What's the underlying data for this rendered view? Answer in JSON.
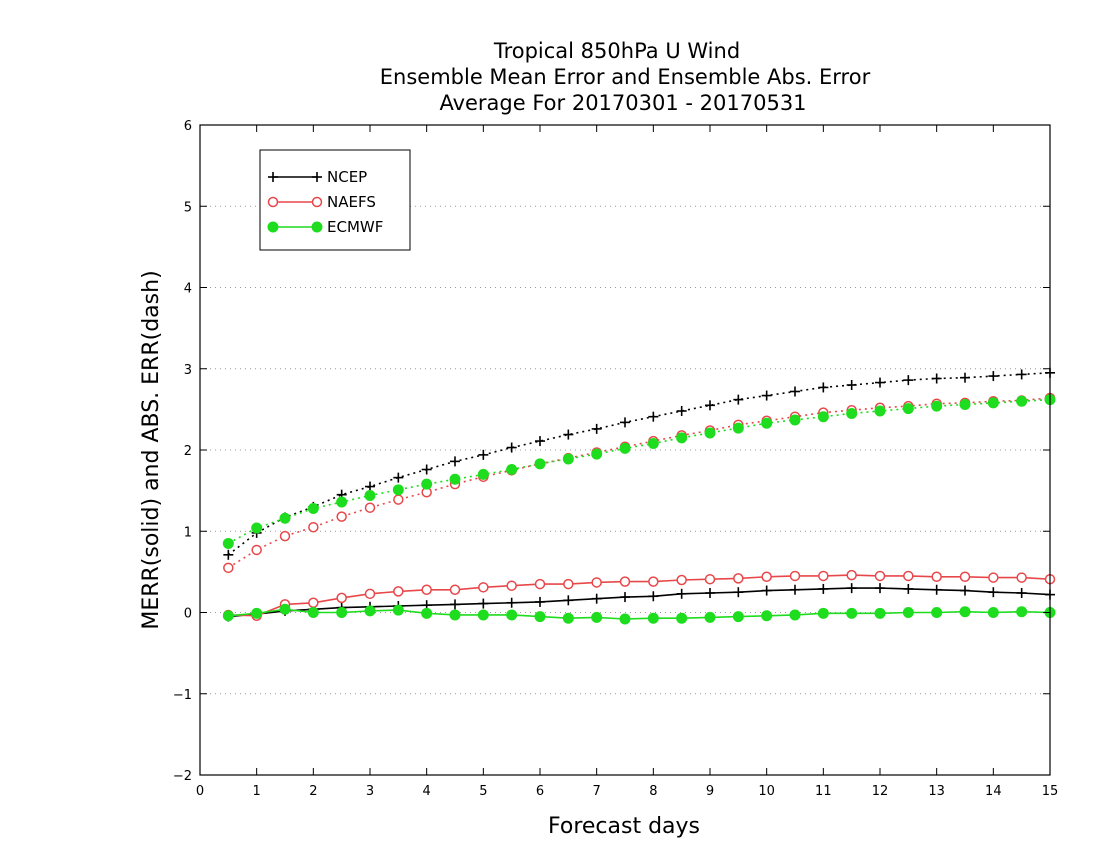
{
  "chart_data": {
    "type": "line",
    "title": [
      "Tropical 850hPa U Wind",
      "Ensemble Mean Error and Ensemble Abs. Error",
      "Average For 20170301 - 20170531"
    ],
    "xlabel": "Forecast days",
    "ylabel": "MERR(solid) and ABS. ERR(dash)",
    "xlim": [
      0,
      15
    ],
    "ylim": [
      -2,
      6
    ],
    "xticks": [
      "0",
      "1",
      "2",
      "3",
      "4",
      "5",
      "6",
      "7",
      "8",
      "9",
      "10",
      "11",
      "12",
      "13",
      "14",
      "15"
    ],
    "yticks": [
      "-2",
      "-1",
      "0",
      "1",
      "2",
      "3",
      "4",
      "5",
      "6"
    ],
    "grid": "horizontal dotted",
    "legend_position": "top-left",
    "x": [
      0.5,
      1,
      1.5,
      2,
      2.5,
      3,
      3.5,
      4,
      4.5,
      5,
      5.5,
      6,
      6.5,
      7,
      7.5,
      8,
      8.5,
      9,
      9.5,
      10,
      10.5,
      11,
      11.5,
      12,
      12.5,
      13,
      13.5,
      14,
      14.5,
      15
    ],
    "series": [
      {
        "name": "NCEP",
        "color": "#000000",
        "marker": "plus",
        "merr": [
          -0.05,
          -0.02,
          0.02,
          0.04,
          0.06,
          0.07,
          0.08,
          0.09,
          0.1,
          0.11,
          0.12,
          0.13,
          0.15,
          0.17,
          0.19,
          0.2,
          0.23,
          0.24,
          0.25,
          0.27,
          0.28,
          0.29,
          0.3,
          0.3,
          0.29,
          0.28,
          0.27,
          0.25,
          0.24,
          0.22
        ],
        "abs_err": [
          0.71,
          0.98,
          1.17,
          1.3,
          1.45,
          1.55,
          1.66,
          1.76,
          1.86,
          1.94,
          2.03,
          2.11,
          2.19,
          2.26,
          2.34,
          2.41,
          2.48,
          2.55,
          2.62,
          2.67,
          2.72,
          2.77,
          2.8,
          2.83,
          2.86,
          2.88,
          2.89,
          2.91,
          2.93,
          2.95
        ]
      },
      {
        "name": "NAEFS",
        "color": "#e8474a",
        "marker": "open-circle",
        "merr": [
          -0.03,
          -0.04,
          0.1,
          0.12,
          0.18,
          0.23,
          0.26,
          0.28,
          0.28,
          0.31,
          0.33,
          0.35,
          0.35,
          0.37,
          0.38,
          0.38,
          0.4,
          0.41,
          0.42,
          0.44,
          0.45,
          0.45,
          0.46,
          0.45,
          0.45,
          0.44,
          0.44,
          0.43,
          0.43,
          0.41
        ],
        "abs_err": [
          0.55,
          0.77,
          0.94,
          1.05,
          1.18,
          1.29,
          1.39,
          1.48,
          1.58,
          1.67,
          1.75,
          1.83,
          1.9,
          1.97,
          2.04,
          2.11,
          2.18,
          2.24,
          2.31,
          2.36,
          2.41,
          2.46,
          2.49,
          2.52,
          2.54,
          2.57,
          2.58,
          2.6,
          2.61,
          2.64
        ]
      },
      {
        "name": "ECMWF",
        "color": "#1edc1e",
        "marker": "filled-circle",
        "merr": [
          -0.04,
          -0.01,
          0.04,
          0.0,
          0.0,
          0.02,
          0.03,
          -0.01,
          -0.03,
          -0.03,
          -0.03,
          -0.05,
          -0.07,
          -0.06,
          -0.08,
          -0.07,
          -0.07,
          -0.06,
          -0.05,
          -0.04,
          -0.03,
          -0.01,
          -0.01,
          -0.01,
          0.0,
          0.0,
          0.01,
          0.0,
          0.01,
          0.0
        ],
        "abs_err": [
          0.85,
          1.04,
          1.16,
          1.28,
          1.36,
          1.44,
          1.51,
          1.58,
          1.64,
          1.7,
          1.76,
          1.83,
          1.89,
          1.95,
          2.02,
          2.08,
          2.15,
          2.21,
          2.27,
          2.33,
          2.37,
          2.41,
          2.45,
          2.48,
          2.51,
          2.54,
          2.56,
          2.58,
          2.6,
          2.62
        ]
      }
    ]
  }
}
